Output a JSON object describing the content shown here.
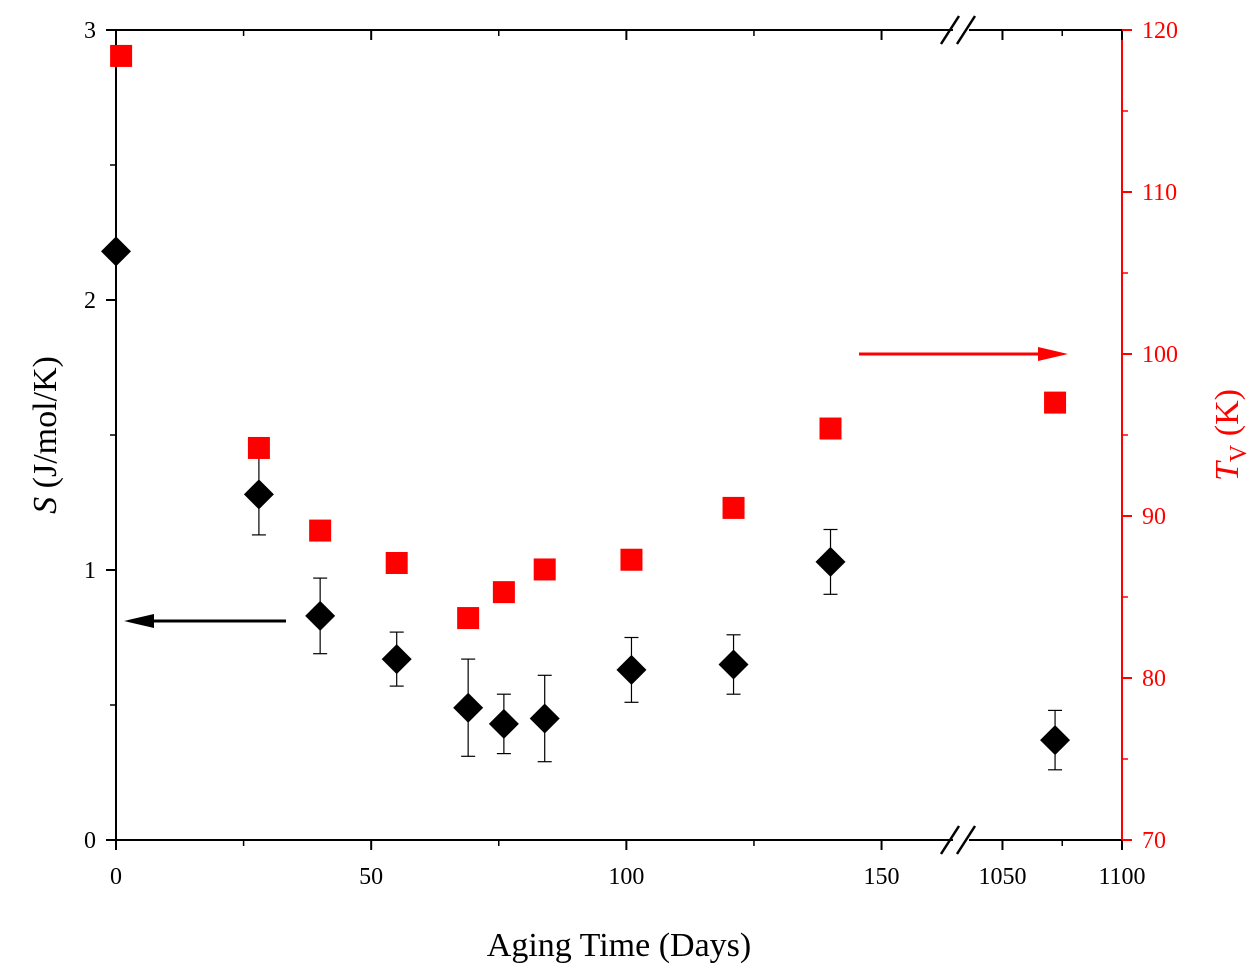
{
  "chart_data": {
    "type": "scatter",
    "xlabel": "Aging Time (Days)",
    "y_left_label": {
      "italic": "S",
      "rest": " (J/mol/K)"
    },
    "y_right_label": {
      "italic": "T",
      "sub": "V",
      "rest": " (K)"
    },
    "x_segments": [
      {
        "range": [
          0,
          164
        ],
        "ticks": [
          0,
          50,
          100,
          150
        ],
        "tick_labels": [
          "0",
          "50",
          "100",
          "150"
        ]
      },
      {
        "range": [
          1036,
          1100
        ],
        "ticks": [
          1050,
          1100
        ],
        "tick_labels": [
          "1050",
          "1100"
        ]
      }
    ],
    "y_left": {
      "range": [
        0,
        3
      ],
      "ticks": [
        0,
        1,
        2,
        3
      ],
      "tick_labels": [
        "0",
        "1",
        "2",
        "3"
      ],
      "color": "#000000"
    },
    "y_right": {
      "range": [
        70,
        120
      ],
      "ticks": [
        70,
        80,
        90,
        100,
        110,
        120
      ],
      "tick_labels": [
        "70",
        "80",
        "90",
        "100",
        "110",
        "120"
      ],
      "color": "#ff0000"
    },
    "series": [
      {
        "axis": "left",
        "marker": "diamond",
        "color": "#000000",
        "points": [
          {
            "x": 0,
            "y": 2.18,
            "err": null
          },
          {
            "x": 28,
            "y": 1.28,
            "err": 0.15
          },
          {
            "x": 40,
            "y": 0.83,
            "err": 0.14
          },
          {
            "x": 55,
            "y": 0.67,
            "err": 0.1
          },
          {
            "x": 69,
            "y": 0.49,
            "err": 0.18
          },
          {
            "x": 76,
            "y": 0.43,
            "err": 0.11
          },
          {
            "x": 84,
            "y": 0.45,
            "err": 0.16
          },
          {
            "x": 101,
            "y": 0.63,
            "err": 0.12
          },
          {
            "x": 121,
            "y": 0.65,
            "err": 0.11
          },
          {
            "x": 140,
            "y": 1.03,
            "err": 0.12
          },
          {
            "x": 1072,
            "y": 0.37,
            "err": 0.11
          }
        ]
      },
      {
        "axis": "right",
        "marker": "square",
        "color": "#ff0000",
        "points": [
          {
            "x": 1,
            "y": 118.4
          },
          {
            "x": 28,
            "y": 94.2
          },
          {
            "x": 40,
            "y": 89.1
          },
          {
            "x": 55,
            "y": 87.1
          },
          {
            "x": 69,
            "y": 83.7
          },
          {
            "x": 76,
            "y": 85.3
          },
          {
            "x": 84,
            "y": 86.7
          },
          {
            "x": 101,
            "y": 87.3
          },
          {
            "x": 121,
            "y": 90.5
          },
          {
            "x": 140,
            "y": 95.4
          },
          {
            "x": 1072,
            "y": 97.0
          }
        ]
      }
    ],
    "annotations": [
      {
        "type": "arrow",
        "direction": "left",
        "color": "#000000",
        "points_to": "left-axis"
      },
      {
        "type": "arrow",
        "direction": "right",
        "color": "#ff0000",
        "points_to": "right-axis"
      },
      {
        "type": "axis-break",
        "symbol": "//"
      }
    ]
  }
}
